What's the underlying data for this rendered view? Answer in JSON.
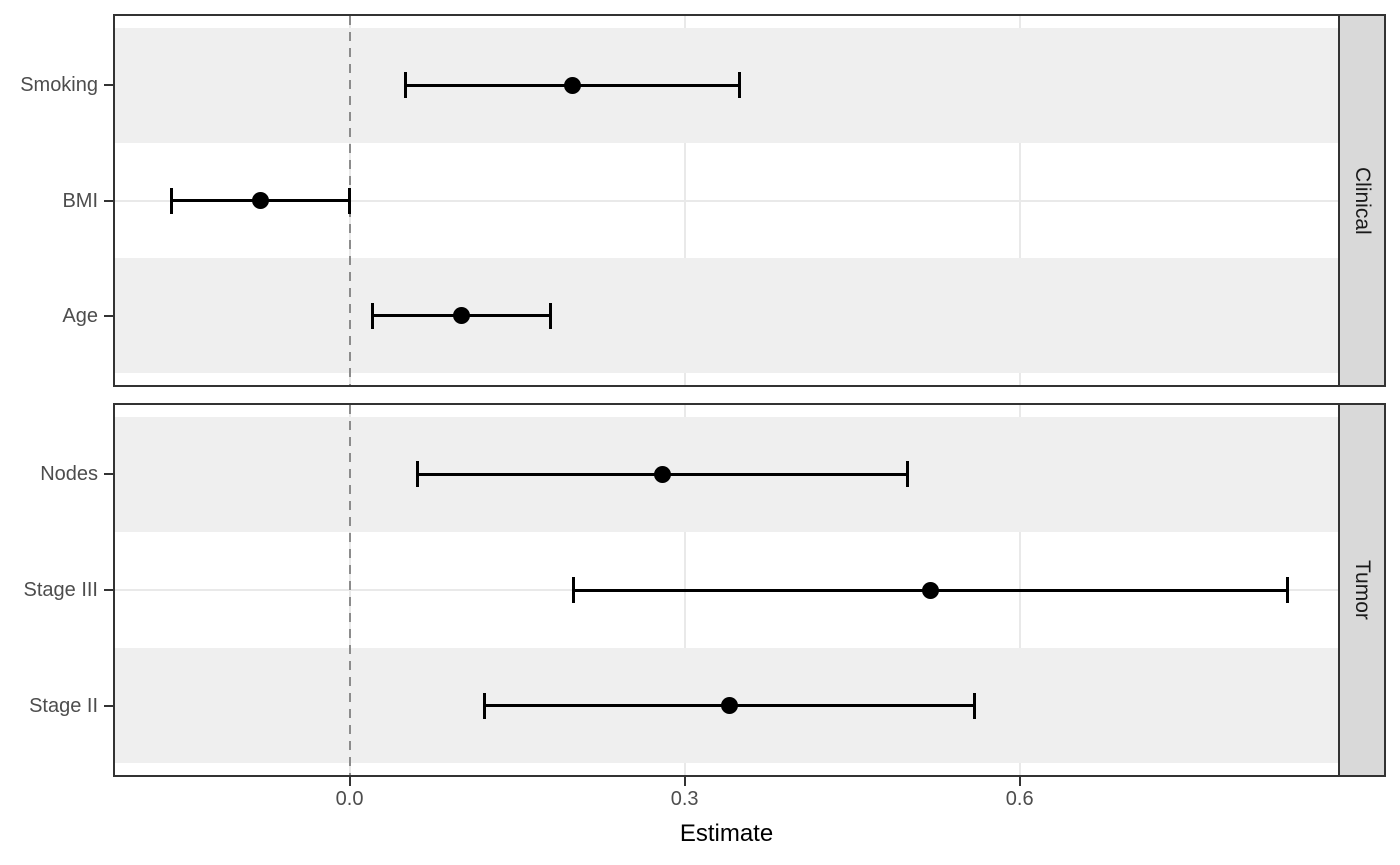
{
  "chart_data": {
    "type": "scatter",
    "subtype": "forest-plot-horizontal-error-bars",
    "title": "",
    "xlabel": "Estimate",
    "ylabel": "",
    "x_ticks": [
      {
        "value": 0.0,
        "label": "0.0"
      },
      {
        "value": 0.3,
        "label": "0.3"
      },
      {
        "value": 0.6,
        "label": "0.6"
      }
    ],
    "xlim": [
      -0.21,
      0.885
    ],
    "reference_line": {
      "x": 0.0,
      "style": "dashed"
    },
    "grid": "major",
    "legend": "none",
    "facets": [
      {
        "label": "Clinical",
        "strip_position": "right",
        "rows": [
          {
            "label": "Smoking",
            "estimate": 0.2,
            "ci_low": 0.05,
            "ci_high": 0.35
          },
          {
            "label": "BMI",
            "estimate": -0.08,
            "ci_low": -0.16,
            "ci_high": 0.0
          },
          {
            "label": "Age",
            "estimate": 0.1,
            "ci_low": 0.02,
            "ci_high": 0.18
          }
        ]
      },
      {
        "label": "Tumor",
        "strip_position": "right",
        "rows": [
          {
            "label": "Nodes",
            "estimate": 0.28,
            "ci_low": 0.06,
            "ci_high": 0.5
          },
          {
            "label": "Stage III",
            "estimate": 0.52,
            "ci_low": 0.2,
            "ci_high": 0.84
          },
          {
            "label": "Stage II",
            "estimate": 0.34,
            "ci_low": 0.12,
            "ci_high": 0.56
          }
        ]
      }
    ],
    "colors": {
      "point": "#000000",
      "error_bar": "#000000",
      "band": "#efefef",
      "gridline": "#e9e9e9",
      "reference_line": "#8c8c8c",
      "panel_border": "#333333",
      "strip_background": "#d9d9d9",
      "strip_text": "#1a1a1a",
      "axis_text": "#4d4d4d",
      "axis_title": "#000000",
      "background": "#ffffff"
    }
  }
}
